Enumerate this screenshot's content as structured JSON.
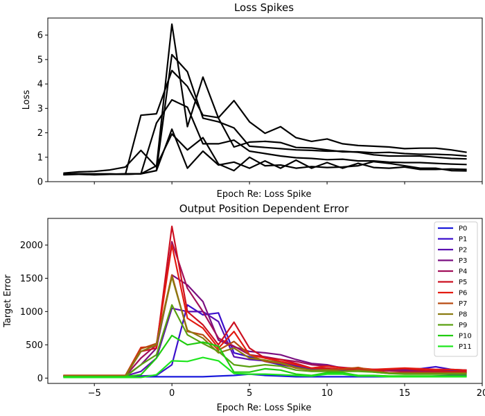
{
  "chart_data": [
    {
      "type": "line",
      "title": "Loss Spikes",
      "xlabel": "Epoch Re: Loss Spike",
      "ylabel": "Loss",
      "xlim": [
        -8,
        20
      ],
      "ylim": [
        0,
        6.7
      ],
      "xticks_labeled": false,
      "yticks": [
        0,
        1,
        2,
        3,
        4,
        5,
        6
      ],
      "grid": false,
      "line_color": "#000000",
      "x": [
        -7,
        -6,
        -5,
        -4,
        -3,
        -2,
        -1,
        0,
        1,
        2,
        3,
        4,
        5,
        6,
        7,
        8,
        9,
        10,
        11,
        12,
        13,
        14,
        15,
        16,
        17,
        18,
        19
      ],
      "series": [
        {
          "values": [
            0.35,
            0.4,
            0.42,
            0.48,
            0.6,
            1.28,
            0.6,
            6.45,
            2.25,
            4.28,
            2.6,
            1.42,
            1.62,
            1.65,
            1.6,
            1.4,
            1.38,
            1.3,
            1.22,
            1.22,
            1.18,
            1.2,
            1.15,
            1.12,
            1.12,
            1.1,
            1.05
          ]
        },
        {
          "values": [
            0.3,
            0.32,
            0.32,
            0.32,
            0.3,
            2.72,
            2.78,
            4.55,
            3.9,
            2.72,
            2.62,
            3.32,
            2.45,
            1.98,
            2.25,
            1.8,
            1.65,
            1.75,
            1.55,
            1.48,
            1.45,
            1.42,
            1.35,
            1.37,
            1.37,
            1.3,
            1.2
          ]
        },
        {
          "values": [
            0.3,
            0.32,
            0.3,
            0.3,
            0.32,
            0.32,
            2.4,
            3.35,
            3.05,
            1.55,
            1.55,
            1.7,
            1.25,
            1.15,
            1.05,
            0.98,
            0.95,
            0.9,
            0.92,
            0.85,
            0.85,
            0.8,
            0.78,
            0.78,
            0.75,
            0.72,
            0.7
          ]
        },
        {
          "values": [
            0.28,
            0.3,
            0.3,
            0.3,
            0.32,
            0.32,
            0.45,
            5.2,
            4.5,
            2.6,
            2.45,
            2.2,
            1.45,
            1.4,
            1.35,
            1.3,
            1.28,
            1.25,
            1.25,
            1.2,
            1.1,
            1.05,
            1.05,
            1.05,
            1.0,
            0.95,
            0.93
          ]
        },
        {
          "values": [
            0.3,
            0.3,
            0.28,
            0.3,
            0.3,
            0.32,
            0.45,
            2.15,
            0.55,
            1.25,
            0.68,
            0.8,
            0.55,
            0.85,
            0.55,
            0.88,
            0.55,
            0.78,
            0.55,
            0.75,
            0.58,
            0.55,
            0.6,
            0.5,
            0.5,
            0.52,
            0.5
          ]
        },
        {
          "values": [
            0.3,
            0.3,
            0.3,
            0.3,
            0.3,
            0.32,
            0.65,
            1.95,
            1.3,
            1.8,
            0.72,
            0.45,
            1.0,
            0.65,
            0.68,
            0.55,
            0.62,
            0.58,
            0.6,
            0.65,
            0.82,
            0.75,
            0.65,
            0.55,
            0.55,
            0.45,
            0.44
          ]
        }
      ]
    },
    {
      "type": "line",
      "title": "Output Position Dependent Error",
      "xlabel": "Epoch Re: Loss Spike",
      "ylabel": "Target Error",
      "xlim": [
        -8,
        20
      ],
      "ylim": [
        -80,
        2400
      ],
      "xticks": [
        -5,
        0,
        5,
        10,
        15,
        20
      ],
      "yticks": [
        0,
        500,
        1000,
        1500,
        2000
      ],
      "grid": false,
      "legend_position": "top-right",
      "x": [
        -7,
        -6,
        -5,
        -4,
        -3,
        -2,
        -1,
        0,
        1,
        2,
        3,
        4,
        5,
        6,
        7,
        8,
        9,
        10,
        11,
        12,
        13,
        14,
        15,
        16,
        17,
        18,
        19
      ],
      "series": [
        {
          "name": "P0",
          "color": "#1a1adb",
          "values": [
            20,
            20,
            20,
            20,
            20,
            20,
            20,
            20,
            20,
            20,
            30,
            40,
            60,
            40,
            30,
            20,
            20,
            20,
            20,
            20,
            20,
            20,
            20,
            20,
            30,
            40,
            40
          ]
        },
        {
          "name": "P1",
          "color": "#3b0fcc",
          "values": [
            30,
            30,
            30,
            30,
            30,
            30,
            40,
            200,
            1100,
            950,
            980,
            380,
            320,
            250,
            200,
            160,
            140,
            130,
            120,
            120,
            130,
            130,
            140,
            140,
            170,
            130,
            120
          ]
        },
        {
          "name": "P2",
          "color": "#5a0fb0",
          "values": [
            30,
            30,
            30,
            30,
            30,
            100,
            300,
            1050,
            1000,
            1000,
            850,
            320,
            280,
            260,
            240,
            180,
            150,
            140,
            130,
            130,
            120,
            130,
            120,
            110,
            110,
            120,
            110
          ]
        },
        {
          "name": "P3",
          "color": "#7a0f80",
          "values": [
            30,
            30,
            30,
            30,
            30,
            200,
            450,
            1550,
            1400,
            1150,
            570,
            470,
            400,
            380,
            350,
            280,
            220,
            200,
            150,
            140,
            130,
            120,
            110,
            110,
            100,
            90,
            90
          ]
        },
        {
          "name": "P4",
          "color": "#a10f5a",
          "values": [
            30,
            30,
            30,
            30,
            30,
            300,
            500,
            2050,
            1350,
            1000,
            600,
            480,
            350,
            320,
            280,
            250,
            200,
            180,
            160,
            140,
            120,
            110,
            100,
            100,
            90,
            90,
            80
          ]
        },
        {
          "name": "P5",
          "color": "#cc1020",
          "values": [
            30,
            30,
            30,
            30,
            30,
            400,
            450,
            2280,
            1000,
            800,
            500,
            840,
            450,
            300,
            280,
            220,
            150,
            150,
            130,
            130,
            110,
            130,
            140,
            120,
            110,
            100,
            100
          ]
        },
        {
          "name": "P6",
          "color": "#e31a10",
          "values": [
            40,
            40,
            40,
            40,
            40,
            460,
            480,
            2000,
            900,
            750,
            450,
            700,
            350,
            300,
            250,
            200,
            150,
            180,
            150,
            150,
            130,
            140,
            150,
            140,
            130,
            130,
            120
          ]
        },
        {
          "name": "P7",
          "color": "#b84a10",
          "values": [
            40,
            40,
            40,
            40,
            40,
            440,
            520,
            1550,
            700,
            650,
            420,
            550,
            350,
            250,
            220,
            150,
            120,
            130,
            130,
            160,
            110,
            80,
            80,
            80,
            80,
            80,
            80
          ]
        },
        {
          "name": "P8",
          "color": "#8a7a10",
          "values": [
            30,
            30,
            30,
            30,
            30,
            400,
            500,
            1520,
            720,
            600,
            380,
            450,
            300,
            270,
            230,
            160,
            120,
            120,
            100,
            120,
            90,
            70,
            70,
            70,
            70,
            70,
            70
          ]
        },
        {
          "name": "P9",
          "color": "#5aa010",
          "values": [
            20,
            20,
            20,
            20,
            20,
            200,
            350,
            1100,
            650,
            520,
            400,
            200,
            170,
            200,
            180,
            120,
            100,
            100,
            100,
            100,
            90,
            70,
            60,
            60,
            60,
            60,
            60
          ]
        },
        {
          "name": "P10",
          "color": "#20cc10",
          "values": [
            20,
            20,
            20,
            20,
            20,
            50,
            300,
            640,
            500,
            540,
            480,
            90,
            90,
            140,
            120,
            60,
            40,
            80,
            80,
            40,
            40,
            30,
            30,
            30,
            30,
            30,
            30
          ]
        },
        {
          "name": "P11",
          "color": "#1ee61e",
          "values": [
            10,
            10,
            10,
            10,
            10,
            10,
            50,
            260,
            250,
            310,
            260,
            70,
            60,
            60,
            50,
            40,
            30,
            60,
            60,
            30,
            30,
            20,
            20,
            20,
            20,
            20,
            20
          ]
        }
      ]
    }
  ]
}
